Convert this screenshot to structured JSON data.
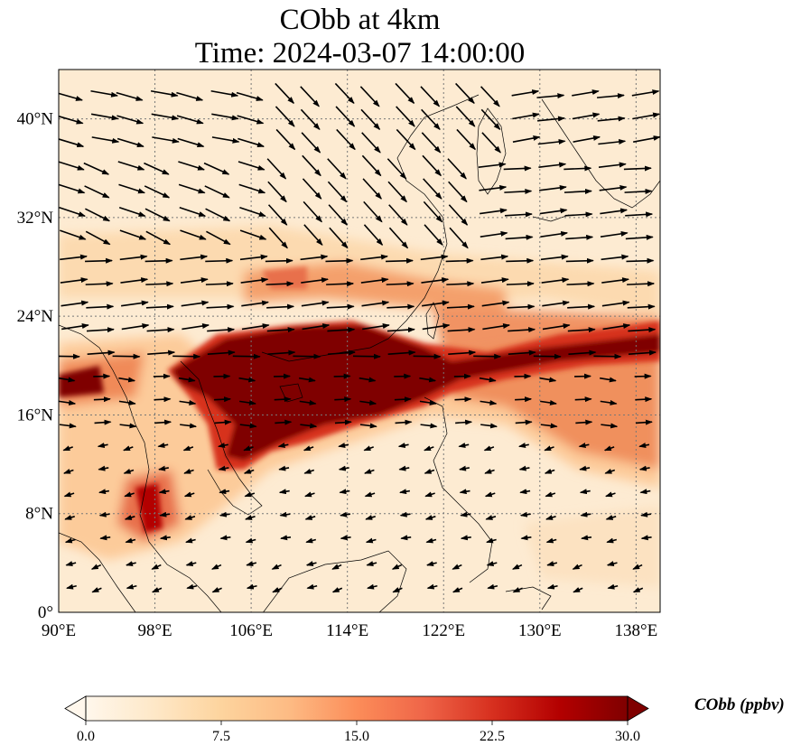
{
  "title": {
    "line1": "CObb at 4km",
    "line2": "Time: 2024-03-07 14:00:00"
  },
  "map": {
    "variable": "CObb",
    "level": "4km",
    "lon_range": [
      90,
      140
    ],
    "lat_range": [
      0,
      44
    ],
    "lon_ticks": [
      {
        "value": 90,
        "label": "90°E"
      },
      {
        "value": 98,
        "label": "98°E"
      },
      {
        "value": 106,
        "label": "106°E"
      },
      {
        "value": 114,
        "label": "114°E"
      },
      {
        "value": 122,
        "label": "122°E"
      },
      {
        "value": 130,
        "label": "130°E"
      },
      {
        "value": 138,
        "label": "138°E"
      }
    ],
    "lat_ticks": [
      {
        "value": 0,
        "label": "0°"
      },
      {
        "value": 8,
        "label": "8°N"
      },
      {
        "value": 16,
        "label": "16°N"
      },
      {
        "value": 24,
        "label": "24°N"
      },
      {
        "value": 32,
        "label": "32°N"
      },
      {
        "value": 40,
        "label": "40°N"
      }
    ],
    "gridlines": true,
    "gridline_style": "dotted",
    "wind_vectors": true,
    "coastlines": true,
    "plume_band": "high concentration band from Indochina / South China Sea eastward past Taiwan to ~140°E around 18–24°N"
  },
  "colorbar": {
    "label": "CObb (ppbv)",
    "min": 0.0,
    "max": 30.0,
    "ticks": [
      "0.0",
      "7.5",
      "15.0",
      "22.5",
      "30.0"
    ],
    "extend": "both",
    "colormap": "OrRd",
    "colors": [
      "#fff7ec",
      "#fee8c8",
      "#fdd49e",
      "#fdbb84",
      "#fc8d59",
      "#ef6548",
      "#d7301f",
      "#b30000",
      "#7f0000"
    ]
  }
}
